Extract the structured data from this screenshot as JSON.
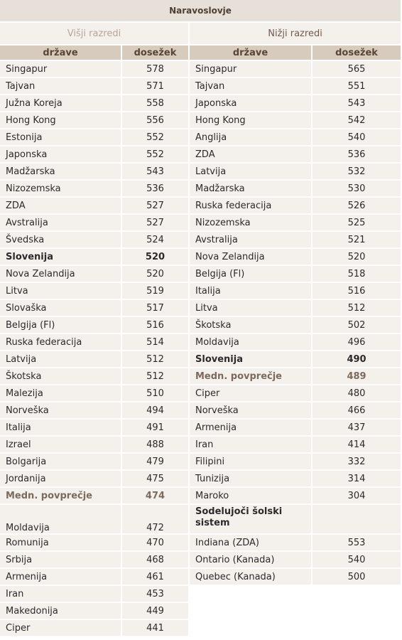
{
  "title": "Naravoslovje",
  "left": {
    "heading": "Višji razredi",
    "headers": [
      "države",
      "dosežek"
    ],
    "rows": [
      [
        "Singapur",
        578
      ],
      [
        "Tajvan",
        571
      ],
      [
        "Južna Koreja",
        558
      ],
      [
        "Hong Kong",
        556
      ],
      [
        "Estonija",
        552
      ],
      [
        "Japonska",
        552
      ],
      [
        "Madžarska",
        543
      ],
      [
        "Nizozemska",
        536
      ],
      [
        "ZDA",
        527
      ],
      [
        "Avstralija",
        527
      ],
      [
        "Švedska",
        524
      ],
      [
        "Slovenija",
        520
      ],
      [
        "Nova Zelandija",
        520
      ],
      [
        "Litva",
        519
      ],
      [
        "Slovaška",
        517
      ],
      [
        "Belgija (Fl)",
        516
      ],
      [
        "Ruska federacija",
        514
      ],
      [
        "Latvija",
        512
      ],
      [
        "Škotska",
        512
      ],
      [
        "Malezija",
        510
      ],
      [
        "Norveška",
        494
      ],
      [
        "Italija",
        491
      ],
      [
        "Izrael",
        488
      ],
      [
        "Bolgarija",
        479
      ],
      [
        "Jordanija",
        475
      ],
      [
        "Medn. povprečje",
        474
      ],
      [
        "Moldavija",
        472
      ],
      [
        "Romunija",
        470
      ],
      [
        "Srbija",
        468
      ],
      [
        "Armenija",
        461
      ],
      [
        "Iran",
        453
      ],
      [
        "Makedonija",
        449
      ],
      [
        "Ciper",
        441
      ]
    ]
  },
  "right": {
    "heading": "Nižji razredi",
    "headers": [
      "države",
      "dosežek"
    ],
    "rows": [
      [
        "Singapur",
        565
      ],
      [
        "Tajvan",
        551
      ],
      [
        "Japonska",
        543
      ],
      [
        "Hong Kong",
        542
      ],
      [
        "Anglija",
        540
      ],
      [
        "ZDA",
        536
      ],
      [
        "Latvija",
        532
      ],
      [
        "Madžarska",
        530
      ],
      [
        "Ruska federacija",
        526
      ],
      [
        "Nizozemska",
        525
      ],
      [
        "Avstralija",
        521
      ],
      [
        "Nova Zelandija",
        520
      ],
      [
        "Belgija (Fl)",
        518
      ],
      [
        "Italija",
        516
      ],
      [
        "Litva",
        512
      ],
      [
        "Škotska",
        502
      ],
      [
        "Moldavija",
        496
      ],
      [
        "Slovenija",
        490
      ],
      [
        "Medn. povprečje",
        489
      ],
      [
        "Ciper",
        480
      ],
      [
        "Norveška",
        466
      ],
      [
        "Armenija",
        437
      ],
      [
        "Iran",
        414
      ],
      [
        "Filipini",
        332
      ],
      [
        "Tunizija",
        314
      ],
      [
        "Maroko",
        304
      ]
    ],
    "subsection": {
      "title": "Sodelujoči šolski sistem",
      "rows": [
        [
          "Indiana (ZDA)",
          553
        ],
        [
          "Ontario (Kanada)",
          540
        ],
        [
          "Quebec (Kanada)",
          500
        ]
      ]
    }
  }
}
